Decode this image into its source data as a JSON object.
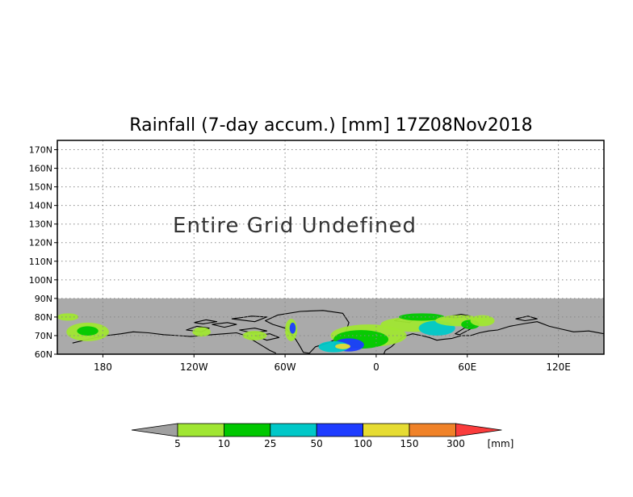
{
  "title": "Rainfall (7-day accum.) [mm] 17Z08Nov2018",
  "message": "Entire Grid Undefined",
  "map": {
    "lat_range": [
      60,
      175
    ],
    "lon_range": [
      -210,
      150
    ],
    "undefined_color": "#aaaaaa",
    "land_outline_color": "#000000",
    "data_band_max_lat": 90,
    "grid": true,
    "y_ticks": [
      "170N",
      "160N",
      "150N",
      "140N",
      "130N",
      "120N",
      "110N",
      "100N",
      "90N",
      "80N",
      "70N",
      "60N"
    ],
    "y_tick_values": [
      170,
      160,
      150,
      140,
      130,
      120,
      110,
      100,
      90,
      80,
      70,
      60
    ],
    "x_ticks": [
      "180",
      "120W",
      "60W",
      "0",
      "60E",
      "120E"
    ],
    "x_tick_values": [
      -180,
      -120,
      -60,
      0,
      60,
      120
    ]
  },
  "colorbar": {
    "labels": [
      "5",
      "10",
      "25",
      "50",
      "100",
      "150",
      "300"
    ],
    "unit": "[mm]",
    "colors": [
      "#a0a0a0",
      "#a0e632",
      "#00c800",
      "#00c8c8",
      "#1e3cff",
      "#e6dc32",
      "#f08228",
      "#fa3c3c"
    ]
  }
}
